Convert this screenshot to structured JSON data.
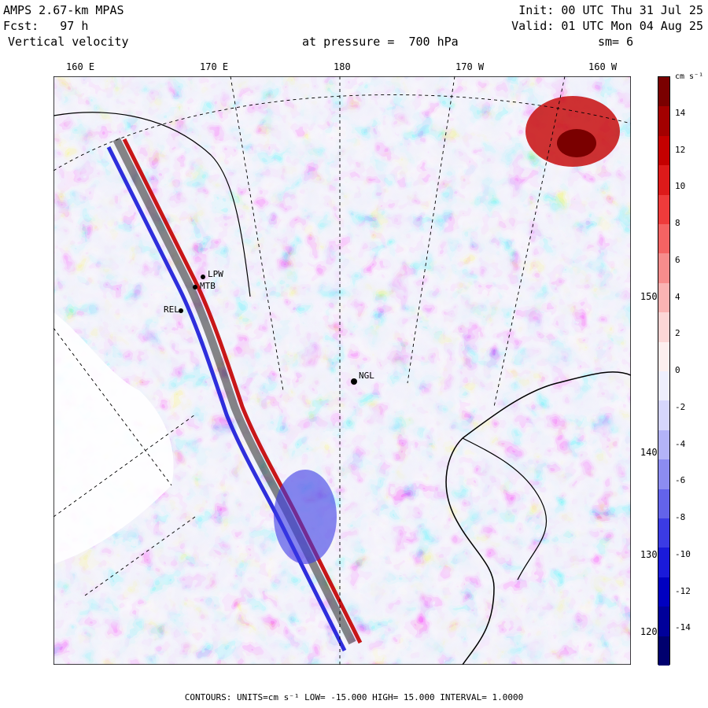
{
  "header": {
    "title": "AMPS 2.67-km MPAS",
    "fcst": "Fcst:   97 h",
    "field": "Vertical velocity",
    "init": "Init: 00 UTC Thu 31 Jul 25",
    "valid": "Valid: 01 UTC Mon 04 Aug 25",
    "level": "at pressure =  700 hPa",
    "smooth": "sm= 6"
  },
  "lon_labels": [
    "160 E",
    "170 E",
    "180",
    "170 W",
    "160 W"
  ],
  "lat_labels": [
    "150 W",
    "140 W",
    "130 W",
    "120 W"
  ],
  "colorbar": {
    "unit": "cm s⁻¹",
    "ticks": [
      "14",
      "12",
      "10",
      "8",
      "6",
      "4",
      "2",
      "0",
      "-2",
      "-4",
      "-6",
      "-8",
      "-10",
      "-12",
      "-14"
    ],
    "colors": [
      "#7a0000",
      "#a30000",
      "#c40000",
      "#dd1a1a",
      "#ee3b3b",
      "#f46363",
      "#f78c8c",
      "#fab3b3",
      "#fcd6d6",
      "#fdeeee",
      "#eeeefd",
      "#d6d6fc",
      "#b3b3f7",
      "#8c8cf1",
      "#6363ea",
      "#3b3be4",
      "#1a1ad9",
      "#0000c0",
      "#00009a",
      "#00006e"
    ]
  },
  "stations": [
    "LPW",
    "MTB",
    "REL",
    "NGL"
  ],
  "footer": "CONTOURS:  UNITS=cm s⁻¹  LOW= -15.000      HIGH=  15.000      INTERVAL=   1.0000",
  "colors": {
    "up": "#d11a1a",
    "down": "#2a2ad9",
    "sea": "#e8e8f6"
  }
}
